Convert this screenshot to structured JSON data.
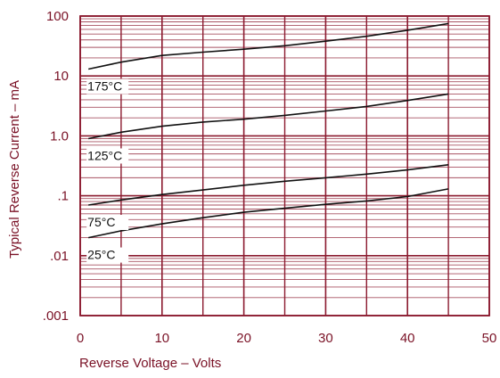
{
  "chart_data": {
    "type": "line",
    "title": "",
    "xlabel": "Reverse Voltage – Volts",
    "ylabel": "Typical Reverse Current – mA",
    "x_scale": "linear",
    "y_scale": "log",
    "xlim": [
      0,
      50
    ],
    "ylim": [
      0.001,
      100
    ],
    "x_ticks": [
      {
        "value": 0,
        "label": "0"
      },
      {
        "value": 10,
        "label": "10"
      },
      {
        "value": 20,
        "label": "20"
      },
      {
        "value": 30,
        "label": "30"
      },
      {
        "value": 40,
        "label": "40"
      },
      {
        "value": 50,
        "label": "50"
      }
    ],
    "y_ticks": [
      {
        "value": 100,
        "label": "100"
      },
      {
        "value": 10,
        "label": "10"
      },
      {
        "value": 1,
        "label": "1.0"
      },
      {
        "value": 0.1,
        "label": ".1"
      },
      {
        "value": 0.01,
        "label": ".01"
      },
      {
        "value": 0.001,
        "label": ".001"
      }
    ],
    "grid": true,
    "colors": {
      "grid": "#8b1a2f",
      "curves": "#111111",
      "text": "#7a1226"
    },
    "series": [
      {
        "name": "175°C",
        "x": [
          1,
          5,
          10,
          15,
          20,
          25,
          30,
          35,
          40,
          45
        ],
        "y": [
          13,
          17,
          22,
          25,
          28,
          32,
          38,
          46,
          58,
          75
        ]
      },
      {
        "name": "125°C",
        "x": [
          1,
          5,
          10,
          15,
          20,
          25,
          30,
          35,
          40,
          45
        ],
        "y": [
          0.9,
          1.15,
          1.45,
          1.7,
          1.9,
          2.2,
          2.6,
          3.1,
          3.9,
          5.0
        ]
      },
      {
        "name": "75°C",
        "x": [
          1,
          5,
          10,
          15,
          20,
          25,
          30,
          35,
          40,
          45
        ],
        "y": [
          0.07,
          0.085,
          0.105,
          0.125,
          0.15,
          0.175,
          0.2,
          0.23,
          0.27,
          0.33
        ]
      },
      {
        "name": "25°C",
        "x": [
          1,
          5,
          10,
          15,
          20,
          25,
          30,
          35,
          40,
          45
        ],
        "y": [
          0.02,
          0.026,
          0.034,
          0.043,
          0.053,
          0.062,
          0.072,
          0.082,
          0.097,
          0.13
        ]
      }
    ]
  }
}
